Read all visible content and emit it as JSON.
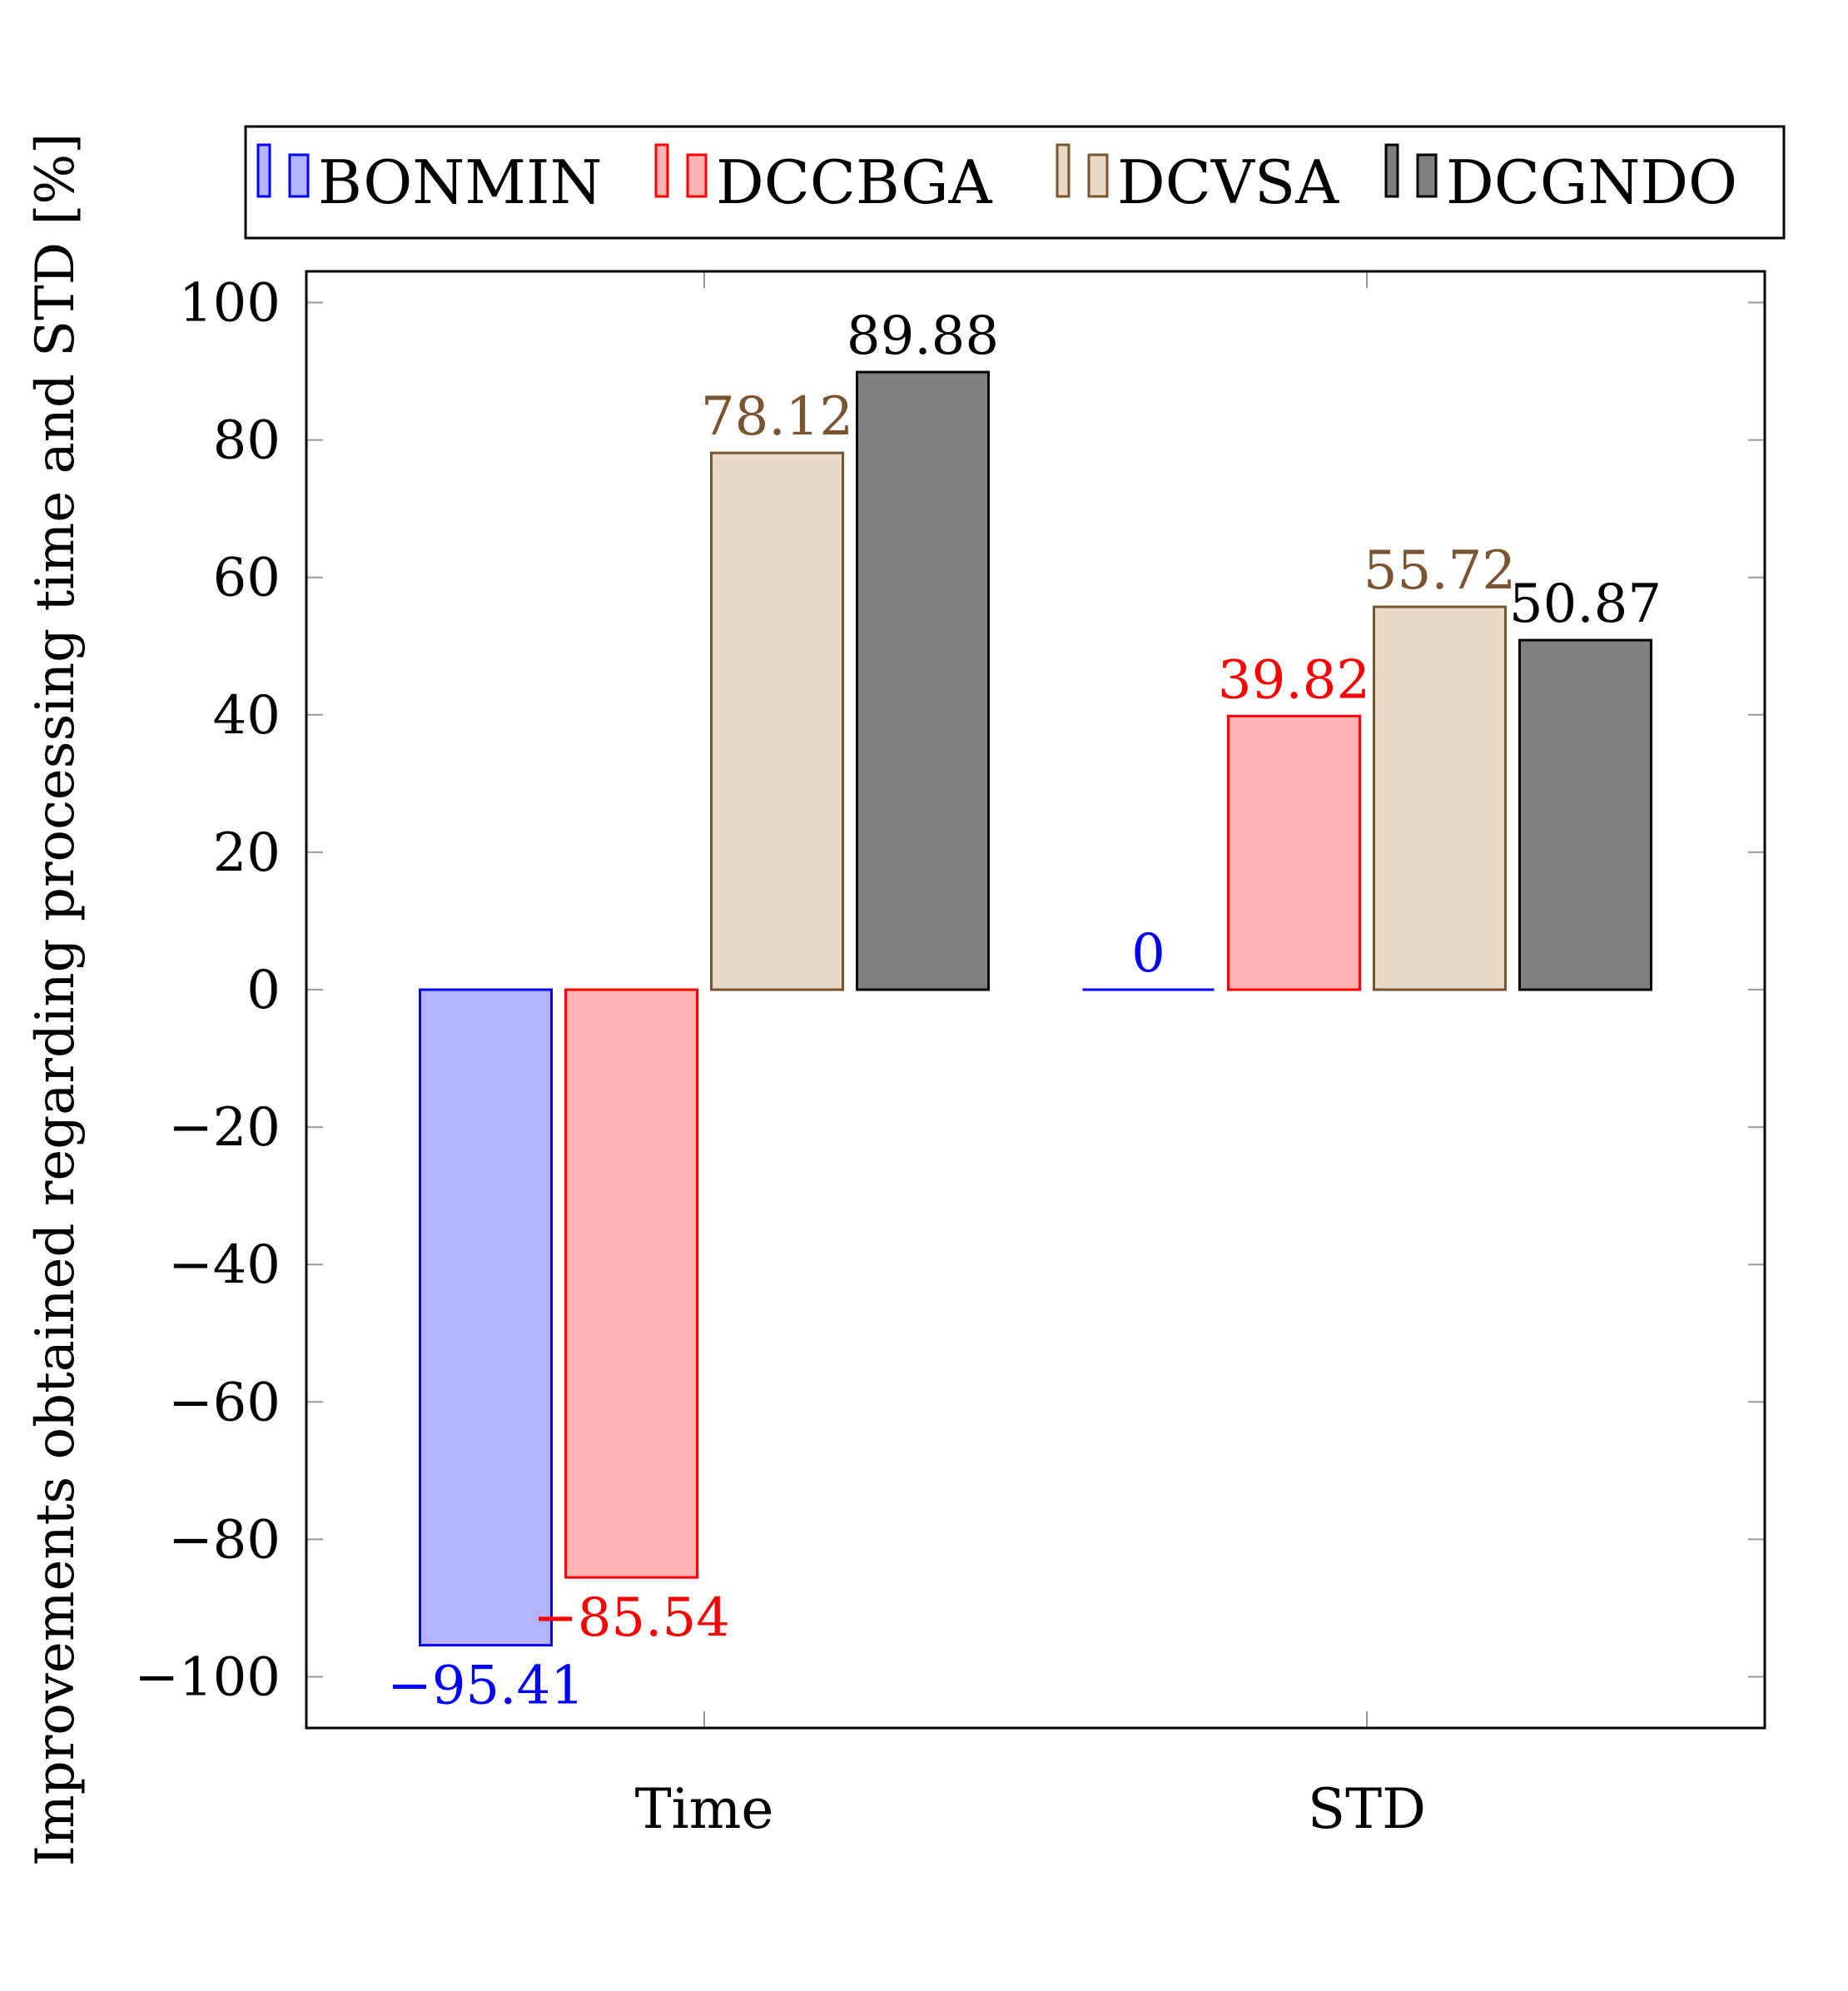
{
  "chart_data": {
    "type": "bar",
    "title": "",
    "xlabel": "",
    "ylabel": "Improvements obtained regarding processing time and STD [%]",
    "categories": [
      "Time",
      "STD"
    ],
    "ylim": [
      -108,
      105
    ],
    "yticks": [
      -100,
      -80,
      -60,
      -40,
      -20,
      0,
      20,
      40,
      60,
      80,
      100
    ],
    "ytick_labels": [
      "−100",
      "−80",
      "−60",
      "−40",
      "−20",
      "0",
      "20",
      "40",
      "60",
      "80",
      "100"
    ],
    "grid": false,
    "legend_position": "top",
    "series": [
      {
        "name": "BONMIN",
        "values": [
          -95.41,
          0
        ],
        "labels": [
          "−95.41",
          "0"
        ],
        "fill": "#b3b3ff",
        "stroke": "#0000ff",
        "label_color": "#0000ff"
      },
      {
        "name": "DCCBGA",
        "values": [
          -85.54,
          39.82
        ],
        "labels": [
          "−85.54",
          "39.82"
        ],
        "fill": "#ffb3b3",
        "stroke": "#ff0000",
        "label_color": "#ff0000"
      },
      {
        "name": "DCVSA",
        "values": [
          78.12,
          55.72
        ],
        "labels": [
          "78.12",
          "55.72"
        ],
        "fill": "#e9d9c5",
        "stroke": "#7a5430",
        "label_color": "#7a5430"
      },
      {
        "name": "DCGNDO",
        "values": [
          89.88,
          50.87
        ],
        "labels": [
          "89.88",
          "50.87"
        ],
        "fill": "#808080",
        "stroke": "#000000",
        "label_color": "#000000"
      }
    ]
  }
}
